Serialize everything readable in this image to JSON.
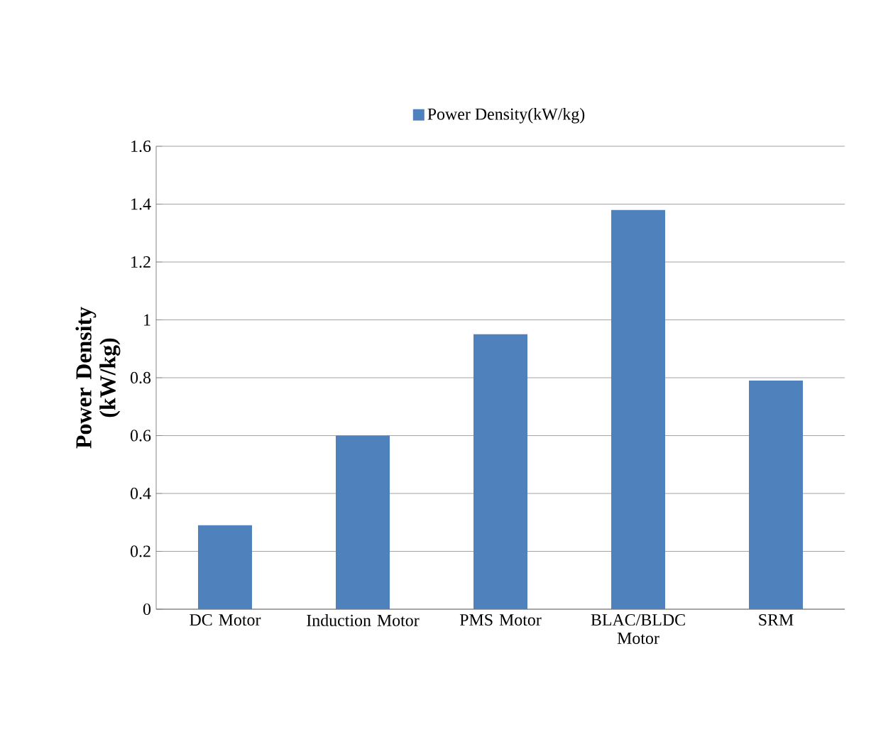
{
  "chart_data": {
    "type": "bar",
    "ylabel": "Power Density (kW/kg)",
    "categories": [
      "DC Motor",
      "Induction Motor",
      "PMS Motor",
      "BLAC/BLDC Motor",
      "SRM"
    ],
    "series": [
      {
        "name": "Power Density(kW/kg)",
        "color": "#4f81bd",
        "values": [
          0.29,
          0.6,
          0.95,
          1.38,
          0.79
        ]
      }
    ],
    "ylim": [
      0,
      1.6
    ],
    "yticks": [
      0,
      0.2,
      0.4,
      0.6,
      0.8,
      1,
      1.2,
      1.4,
      1.6
    ],
    "grid": "y",
    "legend": "top"
  }
}
